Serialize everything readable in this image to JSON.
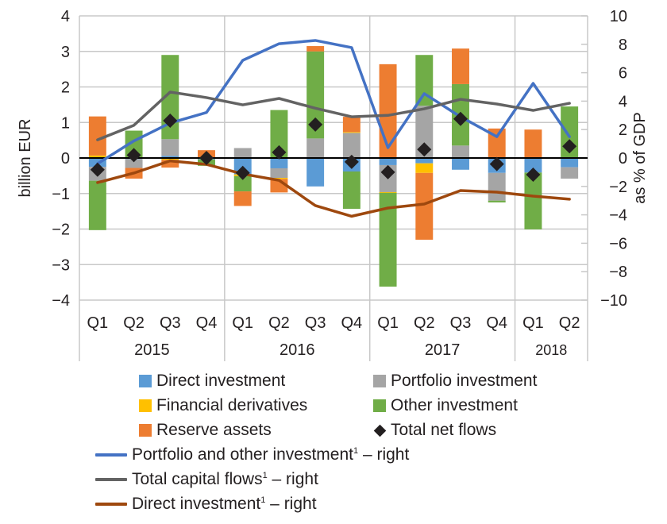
{
  "chart_data": {
    "type": "bar",
    "subtype": "stacked-bar-with-lines",
    "title": "",
    "ylabel_left": "billion  EUR",
    "ylabel_right": "as % of GDP",
    "ylim_left": [
      -4,
      4
    ],
    "ylim_right": [
      -10,
      10
    ],
    "yticks_left": [
      "4",
      "3",
      "2",
      "1",
      "0",
      "−1",
      "−2",
      "−3",
      "−4"
    ],
    "yticks_right": [
      "10",
      "8",
      "6",
      "4",
      "2",
      "0",
      "−2",
      "−4",
      "−6",
      "−8",
      "−10"
    ],
    "grid": true,
    "categories": [
      "Q1",
      "Q2",
      "Q3",
      "Q4",
      "Q1",
      "Q2",
      "Q3",
      "Q4",
      "Q1",
      "Q2",
      "Q3",
      "Q4",
      "Q1",
      "Q2"
    ],
    "year_groups": [
      {
        "label": "2015",
        "count": 4
      },
      {
        "label": "2016",
        "count": 4
      },
      {
        "label": "2017",
        "count": 4
      },
      {
        "label": "2018",
        "count": 2
      }
    ],
    "bar_series": [
      {
        "name": "Direct investment",
        "color": "#5B9BD5",
        "values": [
          -0.25,
          -0.03,
          0.06,
          -0.04,
          -0.46,
          -0.29,
          -0.8,
          -0.38,
          -0.2,
          -0.15,
          -0.33,
          -0.42,
          -0.41,
          -0.26
        ]
      },
      {
        "name": "Portfolio investment",
        "color": "#A5A5A5",
        "values": [
          -0.39,
          -0.25,
          0.47,
          0.0,
          0.28,
          -0.27,
          0.55,
          0.71,
          -0.76,
          1.47,
          0.35,
          -0.78,
          0.0,
          -0.32
        ]
      },
      {
        "name": "Financial derivatives",
        "color": "#FFC000",
        "values": [
          0.07,
          0.02,
          -0.05,
          0.0,
          -0.05,
          -0.03,
          0.0,
          0.02,
          -0.02,
          -0.27,
          0.0,
          0.02,
          0.0,
          0.02
        ]
      },
      {
        "name": "Other investment",
        "color": "#70AD47",
        "values": [
          -1.39,
          0.75,
          2.37,
          -0.18,
          -0.43,
          1.35,
          2.45,
          -1.05,
          -2.64,
          1.43,
          1.73,
          -0.05,
          -1.6,
          1.43
        ]
      },
      {
        "name": "Reserve assets",
        "color": "#ED7D31",
        "values": [
          1.1,
          -0.3,
          -0.22,
          0.22,
          -0.41,
          -0.38,
          0.15,
          0.43,
          2.64,
          -1.88,
          1.0,
          0.81,
          0.8,
          0.0
        ]
      }
    ],
    "markers": {
      "name": "Total net flows",
      "color": "#231f20",
      "values": [
        -0.33,
        0.08,
        1.05,
        0.0,
        -0.42,
        0.16,
        0.94,
        -0.11,
        -0.4,
        0.24,
        1.1,
        -0.17,
        -0.47,
        0.33
      ]
    },
    "line_series": [
      {
        "name": "Portfolio and other investment",
        "sup": "1",
        "suffix": " – right",
        "axis": "right",
        "color": "#4472C4",
        "values": [
          -0.4,
          1.2,
          2.46,
          3.2,
          6.87,
          8.04,
          8.27,
          7.77,
          0.73,
          4.53,
          2.9,
          1.5,
          5.25,
          1.5
        ]
      },
      {
        "name": "Total capital flows",
        "sup": "1",
        "suffix": " – right",
        "axis": "right",
        "color": "#636363",
        "values": [
          1.28,
          2.3,
          4.64,
          4.25,
          3.74,
          4.19,
          3.5,
          2.9,
          3.0,
          3.46,
          4.13,
          3.8,
          3.35,
          3.85
        ]
      },
      {
        "name": "Direct investment",
        "sup": "1",
        "suffix": " – right",
        "axis": "right",
        "color": "#9E480E",
        "values": [
          -1.73,
          -1.06,
          -0.2,
          -0.45,
          -1.12,
          -1.57,
          -3.35,
          -4.1,
          -3.52,
          -3.24,
          -2.29,
          -2.4,
          -2.68,
          -2.9
        ]
      }
    ],
    "legend_placement": "bottom"
  },
  "legend": {
    "direct_investment": "Direct investment",
    "portfolio_investment": "Portfolio investment",
    "financial_derivatives": "Financial derivatives",
    "other_investment": "Other investment",
    "reserve_assets": "Reserve assets",
    "total_net_flows": "Total net flows",
    "line_portfolio_other": "Portfolio and other investment",
    "line_total_capital": "Total capital flows",
    "line_direct": "Direct investment",
    "footnote_mark": "1",
    "right_suffix": " – right"
  }
}
